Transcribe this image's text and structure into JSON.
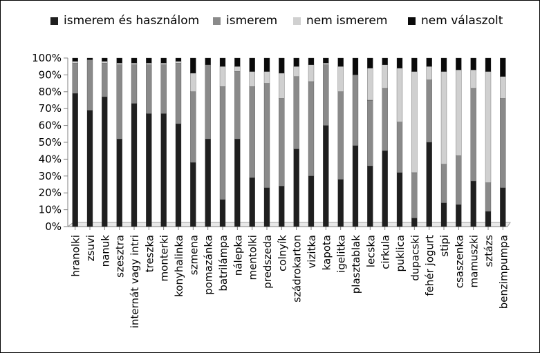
{
  "chart_data": {
    "type": "bar",
    "stacked": true,
    "percent": true,
    "legend_position": "top",
    "grid": false,
    "ylim": [
      0,
      100
    ],
    "y_ticks": [
      "0%",
      "10%",
      "20%",
      "30%",
      "40%",
      "50%",
      "60%",
      "70%",
      "80%",
      "90%",
      "100%"
    ],
    "categories": [
      "hranolki",
      "zsuvi",
      "nanuk",
      "szesztra",
      "internát vagy intri",
      "treszka",
      "monterki",
      "konyhalinka",
      "szmena",
      "pomazánka",
      "batrilámpa",
      "nálepka",
      "mentolki",
      "predszeda",
      "colnyík",
      "szádrokarton",
      "vizitka",
      "kapota",
      "igelitka",
      "plasztablak",
      "lecska",
      "cirkula",
      "puklica",
      "dupacski",
      "fehér jogurt",
      "stipi",
      "csaszenka",
      "mamuszki",
      "sztázs",
      "benzimpumpa"
    ],
    "series": [
      {
        "name": "ismerem és használom",
        "color": "#1f1f1f",
        "values": [
          79,
          69,
          77,
          52,
          73,
          67,
          67,
          61,
          38,
          52,
          16,
          52,
          29,
          23,
          24,
          46,
          30,
          60,
          28,
          48,
          36,
          45,
          32,
          5,
          50,
          14,
          13,
          27,
          9,
          23
        ]
      },
      {
        "name": "ismerem",
        "color": "#8a8a8a",
        "values": [
          18,
          30,
          20,
          44,
          23,
          29,
          29,
          36,
          42,
          44,
          67,
          40,
          54,
          62,
          52,
          43,
          56,
          36,
          52,
          42,
          39,
          37,
          30,
          27,
          37,
          23,
          29,
          55,
          17,
          53
        ]
      },
      {
        "name": "nem ismerem",
        "color": "#d0d0d0",
        "values": [
          1,
          0,
          1,
          1,
          1,
          1,
          1,
          1,
          11,
          0,
          12,
          3,
          9,
          7,
          15,
          6,
          10,
          1,
          15,
          0,
          19,
          14,
          32,
          60,
          8,
          55,
          51,
          11,
          66,
          13
        ]
      },
      {
        "name": "nem válaszolt",
        "color": "#0a0a0a",
        "values": [
          2,
          1,
          2,
          3,
          3,
          3,
          3,
          2,
          9,
          4,
          5,
          5,
          8,
          8,
          9,
          5,
          4,
          3,
          5,
          10,
          6,
          4,
          6,
          8,
          5,
          8,
          7,
          7,
          8,
          11
        ]
      }
    ]
  }
}
